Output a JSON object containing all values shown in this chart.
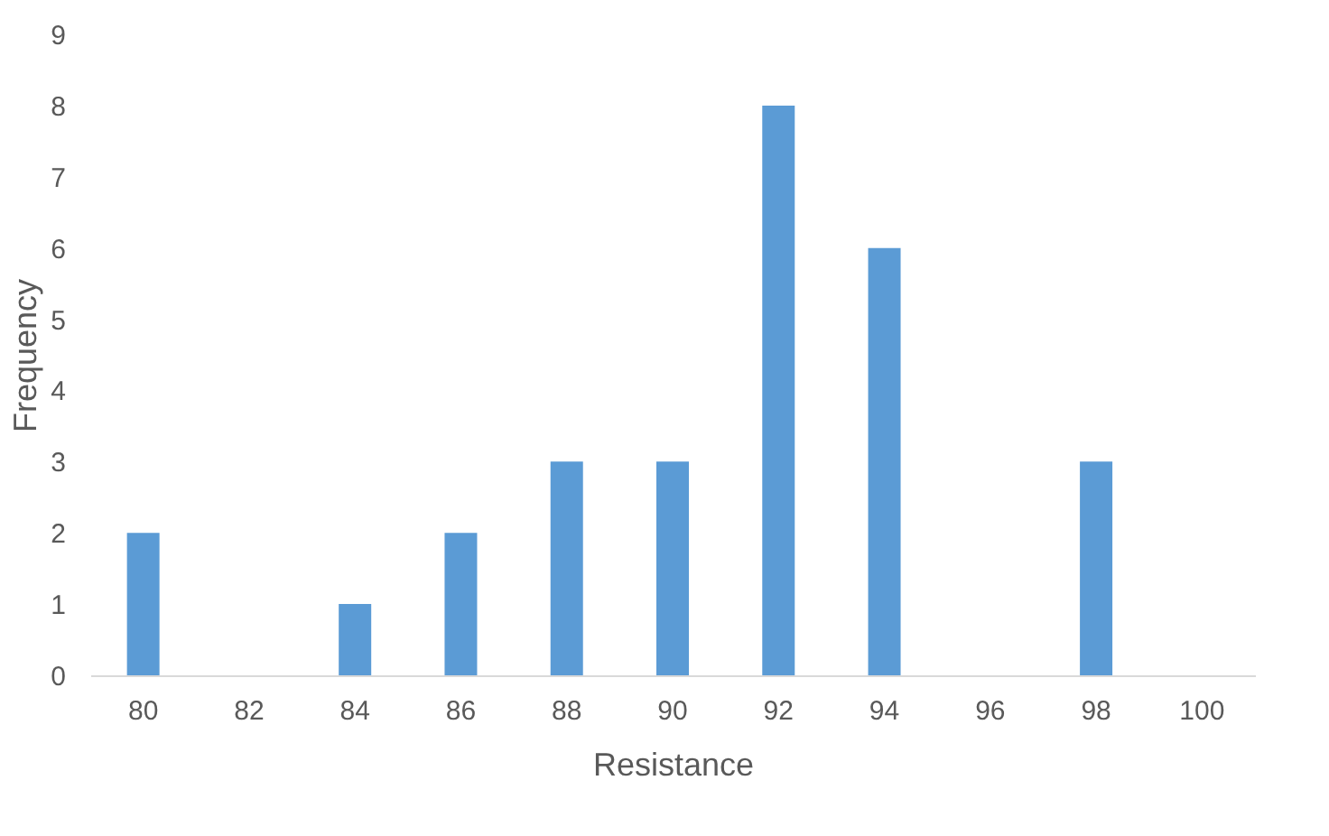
{
  "chart_data": {
    "type": "bar",
    "xlabel": "Resistance",
    "ylabel": "Frequency",
    "categories": [
      "80",
      "82",
      "84",
      "86",
      "88",
      "90",
      "92",
      "94",
      "96",
      "98",
      "100"
    ],
    "values": [
      2,
      0,
      1,
      2,
      3,
      3,
      8,
      6,
      0,
      3,
      0
    ],
    "color": "#5b9bd5",
    "ylim": [
      0,
      9
    ],
    "yticks": [
      0,
      1,
      2,
      3,
      4,
      5,
      6,
      7,
      8,
      9
    ],
    "grid": false
  }
}
